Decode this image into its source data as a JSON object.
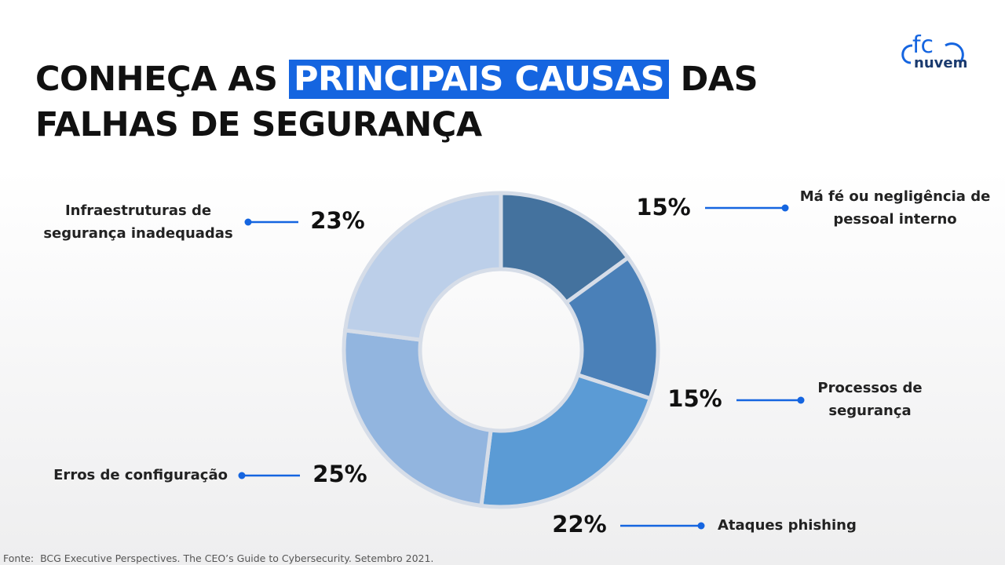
{
  "header": {
    "title_parts": [
      "CONHEÇA AS",
      "PRINCIPAIS CAUSAS",
      "DAS FALHAS DE SEGURANÇA"
    ]
  },
  "logo": {
    "mark": "fc",
    "name": "nuvem"
  },
  "chart_data": {
    "type": "pie",
    "donut": true,
    "categories": [
      "Má fé ou negligência de pessoal interno",
      "Processos de segurança",
      "Ataques phishing",
      "Erros de configuração",
      "Infraestruturas de segurança inadequadas"
    ],
    "values": [
      15,
      15,
      22,
      25,
      23
    ],
    "value_labels": [
      "15%",
      "15%",
      "22%",
      "25%",
      "23%"
    ],
    "colors": [
      "#44729e",
      "#4a80b8",
      "#5b9bd5",
      "#92b5df",
      "#bccfe9"
    ]
  },
  "footer": {
    "source": "Fonte:  BCG Executive Perspectives. The CEO’s Guide to Cybersecurity. Setembro 2021."
  }
}
